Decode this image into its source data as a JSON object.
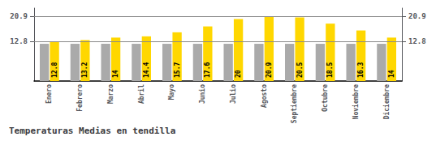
{
  "chart_data": {
    "type": "bar",
    "title": "Temperaturas Medias en tendilla",
    "categories": [
      "Enero",
      "Febrero",
      "Marzo",
      "Abril",
      "Mayo",
      "Junio",
      "Julio",
      "Agosto",
      "Septiembre",
      "Octubre",
      "Noviembre",
      "Diciembre"
    ],
    "series": [
      {
        "color": "#AAAAAA",
        "values": [
          12.0,
          12.0,
          12.0,
          12.0,
          12.0,
          12.0,
          12.0,
          12.0,
          12.0,
          12.0,
          12.0,
          12.0
        ]
      },
      {
        "color": "#FFD700",
        "data_labels": true,
        "values": [
          12.8,
          13.2,
          14.0,
          14.4,
          15.7,
          17.6,
          20.0,
          20.9,
          20.5,
          18.5,
          16.3,
          14.0
        ]
      }
    ],
    "ylim": [
      0,
      23.5
    ],
    "yticks": [
      12.8,
      20.9
    ],
    "y2lim": [
      0,
      23.5
    ],
    "y2ticks": [
      12.8,
      20.9
    ],
    "grid": true
  }
}
